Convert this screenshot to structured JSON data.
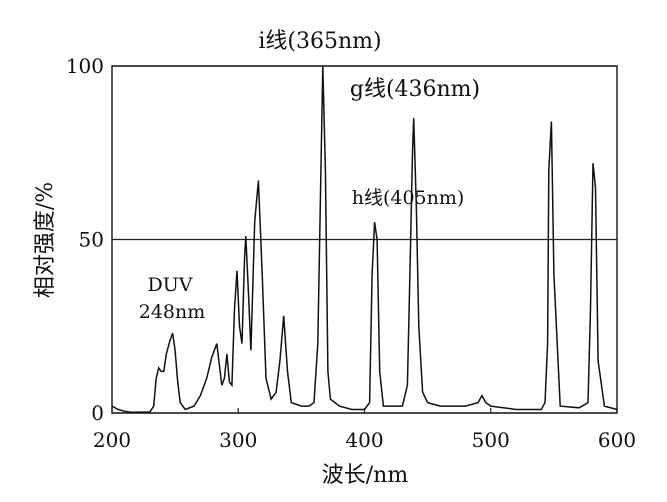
{
  "chart_data": {
    "type": "line",
    "x_label": "波长/nm",
    "y_label": "相对强度/%",
    "annotations": [
      "i线(365nm)",
      "g线(436nm)",
      "h线(405nm)",
      "DUV",
      "248nm"
    ],
    "xlim": [
      200,
      600
    ],
    "xticks": [
      200,
      300,
      400,
      500,
      600
    ],
    "ylim": [
      0,
      100
    ],
    "yticks": [
      0,
      50,
      100
    ],
    "grid": true,
    "series": [
      {
        "color": "#111111",
        "x": [
          200,
          205,
          210,
          215,
          230,
          233,
          235,
          237,
          239,
          241,
          243,
          246,
          248,
          250,
          252,
          254,
          258,
          265,
          270,
          275,
          279,
          283,
          285,
          287,
          289,
          291,
          293,
          295,
          297,
          299,
          301,
          303,
          305,
          306,
          308,
          310,
          313,
          316,
          319,
          322,
          326,
          330,
          333,
          336,
          339,
          342,
          350,
          356,
          360,
          363,
          365,
          367,
          369,
          371,
          373,
          380,
          390,
          400,
          404,
          406,
          408,
          410,
          412,
          415,
          420,
          430,
          434,
          436,
          438,
          439,
          441,
          443,
          446,
          450,
          460,
          480,
          490,
          493,
          496,
          500,
          520,
          540,
          543,
          545,
          546,
          548,
          550,
          555,
          570,
          577,
          579,
          581,
          583,
          585,
          590,
          600
        ],
        "values": [
          2,
          1,
          0.5,
          0.2,
          0.3,
          2,
          10,
          13,
          12,
          12,
          17,
          21,
          23,
          18,
          9,
          3,
          1,
          2,
          5,
          10,
          16,
          20,
          14,
          8,
          10,
          17,
          9,
          8,
          30,
          41,
          25,
          20,
          45,
          51,
          35,
          18,
          55,
          67,
          40,
          10,
          4,
          6,
          15,
          28,
          12,
          3,
          2,
          2,
          3,
          20,
          60,
          100,
          70,
          12,
          4,
          2,
          1,
          1,
          3,
          40,
          55,
          50,
          12,
          2,
          2,
          2,
          8,
          40,
          75,
          85,
          60,
          25,
          6,
          3,
          2,
          2,
          3,
          5,
          3,
          2,
          1,
          1,
          3,
          20,
          70,
          84,
          40,
          2,
          1.5,
          3,
          30,
          72,
          65,
          15,
          2,
          1
        ]
      }
    ]
  }
}
